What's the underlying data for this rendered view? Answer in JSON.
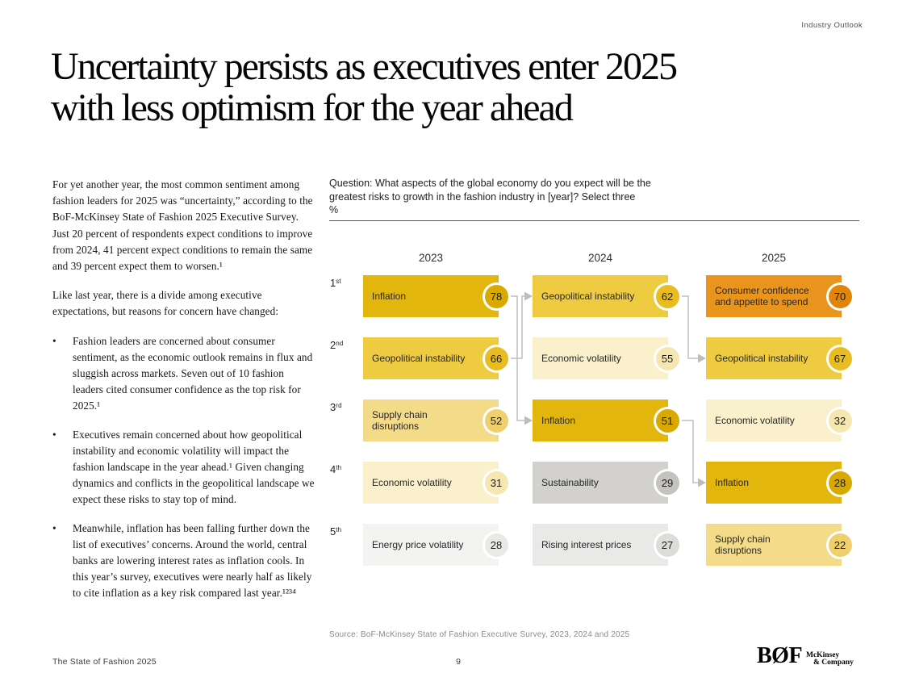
{
  "header": {
    "label": "Industry Outlook"
  },
  "title": {
    "line1": "Uncertainty persists as executives enter 2025",
    "line2": "with less optimism for the year ahead"
  },
  "left_column": {
    "bullet_marker": "•",
    "paragraph1": "For yet another year, the most common sentiment among fashion leaders for 2025 was “uncertainty,” according to the BoF-McKinsey State of Fashion 2025 Executive Survey. Just 20 percent of respondents expect conditions to improve from 2024, 41 percent expect conditions to remain the same and 39 percent expect them to worsen.¹",
    "paragraph2": "Like last year, there is a divide among executive expectations, but reasons for concern have changed:",
    "bullets": [
      "Fashion leaders are concerned about consumer sentiment, as the economic outlook remains in flux and sluggish across markets. Seven out of 10 fashion leaders cited consumer confidence as the top risk for 2025.¹",
      "Executives remain concerned about how geopolitical instability and economic volatility will impact the fashion landscape in the year ahead.¹ Given changing dynamics and conflicts in the geopolitical landscape we expect these risks to stay top of mind.",
      "Meanwhile, inflation has been falling further down the list of executives’ concerns. Around the world, central banks are lowering interest rates as inflation cools. In this year’s survey, executives were nearly half as likely to cite inflation as a key risk compared last year.¹²³⁴"
    ]
  },
  "chart_data": {
    "type": "table",
    "question_line1": "Question: What aspects of the global economy do you expect will be the",
    "question_line2": "greatest risks to growth in the fashion industry in [year]? Select three",
    "unit_label": "%",
    "years": [
      "2023",
      "2024",
      "2025"
    ],
    "ranks": [
      {
        "num": "1",
        "suf": "st"
      },
      {
        "num": "2",
        "suf": "nd"
      },
      {
        "num": "3",
        "suf": "rd"
      },
      {
        "num": "4",
        "suf": "th"
      },
      {
        "num": "5",
        "suf": "th"
      }
    ],
    "columns": [
      {
        "year": "2023",
        "items": [
          {
            "label": "Inflation",
            "value": 78,
            "category": "inflation"
          },
          {
            "label": "Geopolitical instability",
            "value": 66,
            "category": "geopolitical_instability"
          },
          {
            "label": "Supply chain disruptions",
            "value": 52,
            "category": "supply_chain_disruptions"
          },
          {
            "label": "Economic volatility",
            "value": 31,
            "category": "economic_volatility"
          },
          {
            "label": "Energy price volatility",
            "value": 28,
            "category": "energy_price_volatility"
          }
        ]
      },
      {
        "year": "2024",
        "items": [
          {
            "label": "Geopolitical instability",
            "value": 62,
            "category": "geopolitical_instability"
          },
          {
            "label": "Economic volatility",
            "value": 55,
            "category": "economic_volatility"
          },
          {
            "label": "Inflation",
            "value": 51,
            "category": "inflation"
          },
          {
            "label": "Sustainability",
            "value": 29,
            "category": "sustainability"
          },
          {
            "label": "Rising interest prices",
            "value": 27,
            "category": "rising_interest_prices"
          }
        ]
      },
      {
        "year": "2025",
        "items": [
          {
            "label": "Consumer confidence and appetite to spend",
            "value": 70,
            "category": "consumer_confidence"
          },
          {
            "label": "Geopolitical instability",
            "value": 67,
            "category": "geopolitical_instability"
          },
          {
            "label": "Economic volatility",
            "value": 32,
            "category": "economic_volatility"
          },
          {
            "label": "Inflation",
            "value": 28,
            "category": "inflation"
          },
          {
            "label": "Supply chain disruptions",
            "value": 22,
            "category": "supply_chain_disruptions"
          }
        ]
      }
    ],
    "connections": [
      {
        "from": [
          0,
          0
        ],
        "to": [
          1,
          2
        ]
      },
      {
        "from": [
          0,
          1
        ],
        "to": [
          1,
          0
        ]
      },
      {
        "from": [
          1,
          0
        ],
        "to": [
          2,
          1
        ]
      },
      {
        "from": [
          1,
          2
        ],
        "to": [
          2,
          3
        ]
      }
    ],
    "colors": {
      "inflation": {
        "box": "#e2b60d",
        "circle": "#d9a900"
      },
      "geopolitical_instability": {
        "box": "#efcb42",
        "circle": "#e9bc20"
      },
      "supply_chain_disruptions": {
        "box": "#f4db8a",
        "circle": "#efd06c"
      },
      "economic_volatility": {
        "box": "#faf0cb",
        "circle": "#f6e6b0"
      },
      "energy_price_volatility": {
        "box": "#f3f3f1",
        "circle": "#e9e9e6"
      },
      "sustainability": {
        "box": "#d2d1ce",
        "circle": "#c4c3c0"
      },
      "rising_interest_prices": {
        "box": "#e9e9e7",
        "circle": "#dcdcd9"
      },
      "consumer_confidence": {
        "box": "#e9941d",
        "circle": "#e0850a"
      }
    },
    "arrow_color": "#bdbdba"
  },
  "source_line": "Source: BoF-McKinsey State of Fashion Executive Survey, 2023, 2024 and 2025",
  "footer": {
    "left": "The State of Fashion 2025",
    "page_number": "9",
    "bof_logo": "BØF",
    "mckinsey_line1": "McKinsey",
    "mckinsey_line2": "& Company"
  }
}
